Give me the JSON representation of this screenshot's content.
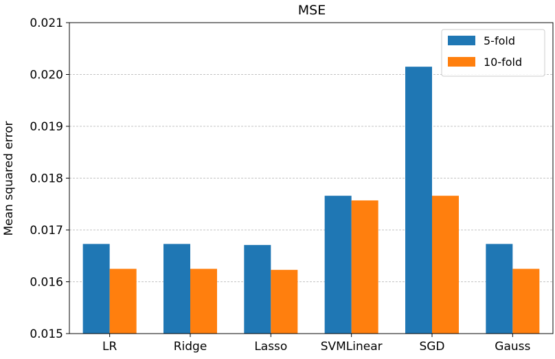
{
  "chart_data": {
    "type": "bar",
    "title": "MSE",
    "xlabel": "",
    "ylabel": "Mean squared error",
    "categories": [
      "LR",
      "Ridge",
      "Lasso",
      "SVMLinear",
      "SGD",
      "Gauss"
    ],
    "series": [
      {
        "name": "5-fold",
        "color": "#1f77b4",
        "values": [
          0.01673,
          0.01673,
          0.01671,
          0.01766,
          0.02015,
          0.01673
        ]
      },
      {
        "name": "10-fold",
        "color": "#ff7f0e",
        "values": [
          0.01625,
          0.01625,
          0.01623,
          0.01757,
          0.01766,
          0.01625
        ]
      }
    ],
    "ylim": [
      0.015,
      0.021
    ],
    "yticks": [
      "0.015",
      "0.016",
      "0.017",
      "0.018",
      "0.019",
      "0.020",
      "0.021"
    ],
    "grid": "y-dashed",
    "legend_position": "top-right"
  }
}
